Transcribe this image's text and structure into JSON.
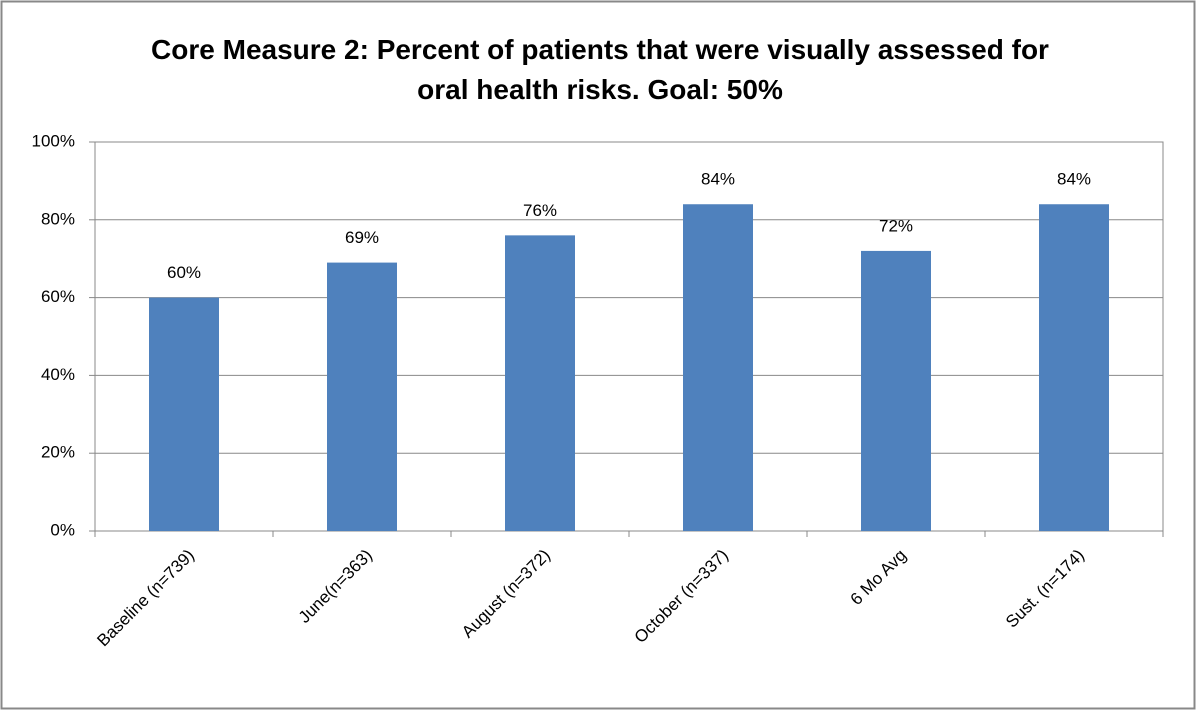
{
  "chart_data": {
    "type": "bar",
    "title": "Core Measure 2: Percent of patients that were visually assessed for oral health risks. Goal: 50%",
    "categories": [
      "Baseline (n=739)",
      "June(n=363)",
      "August (n=372)",
      "October (n=337)",
      "6 Mo Avg",
      "Sust. (n=174)"
    ],
    "values": [
      60,
      69,
      76,
      84,
      72,
      84
    ],
    "value_labels": [
      "60%",
      "69%",
      "76%",
      "84%",
      "72%",
      "84%"
    ],
    "color": "#4f81bd",
    "ylim": [
      0,
      100
    ],
    "yticks": [
      {
        "value": 0,
        "label": "0%"
      },
      {
        "value": 20,
        "label": "20%"
      },
      {
        "value": 40,
        "label": "40%"
      },
      {
        "value": 60,
        "label": "60%"
      },
      {
        "value": 80,
        "label": "80%"
      },
      {
        "value": 100,
        "label": "100%"
      }
    ],
    "grid": true
  }
}
